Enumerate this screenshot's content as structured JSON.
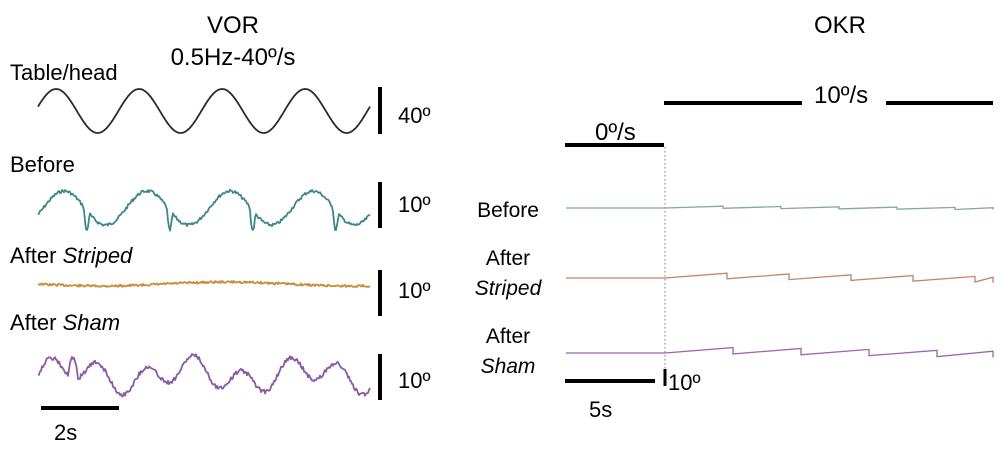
{
  "vor": {
    "title": "VOR",
    "stimulus": "0.5Hz-40º/s",
    "traces": [
      {
        "label": "Table/head",
        "label_emph": "",
        "color": "#2a2a2a",
        "scale": "40º"
      },
      {
        "label": "Before",
        "label_emph": "",
        "color": "#3f868a",
        "scale": "10º"
      },
      {
        "label": "After ",
        "label_emph": "Striped",
        "color": "#c98d3c",
        "scale": "10º"
      },
      {
        "label": "After ",
        "label_emph": "Sham",
        "color": "#8a5aa6",
        "scale": "10º"
      }
    ],
    "time_scale": "2s"
  },
  "okr": {
    "title": "OKR",
    "stim_low": "0º/s",
    "stim_high": "10º/s",
    "traces": [
      {
        "label": "Before",
        "label2": "",
        "color": "#7fa9a6"
      },
      {
        "label": "After",
        "label2": "Striped",
        "color": "#c8825e"
      },
      {
        "label": "After",
        "label2": "Sham",
        "color": "#9b63ac"
      }
    ],
    "time_scale": "5s",
    "amp_scale": "10º"
  }
}
